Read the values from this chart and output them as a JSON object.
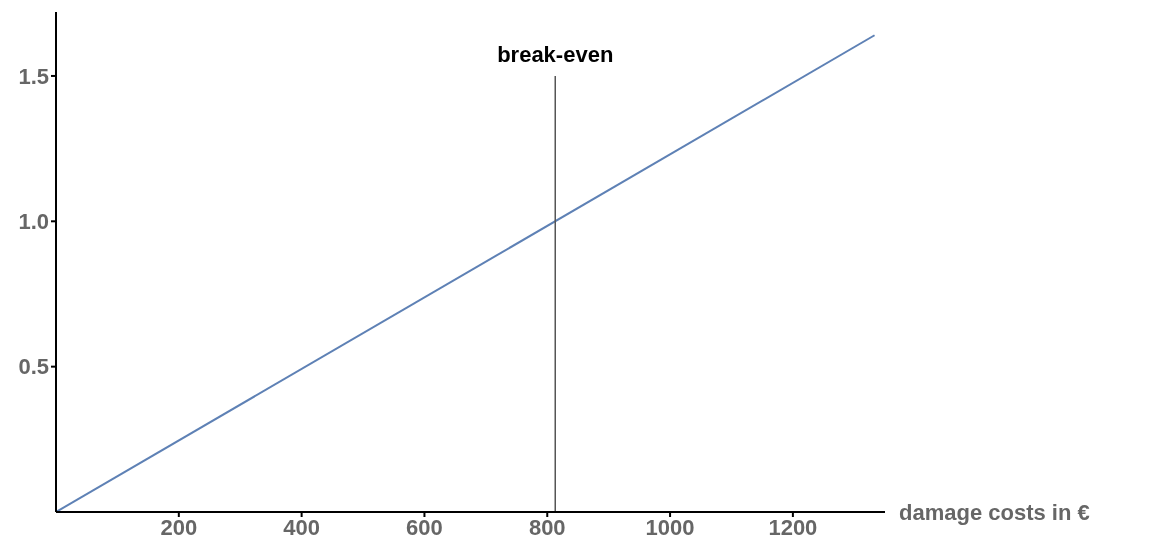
{
  "chart_data": {
    "type": "line",
    "xlabel": "damage costs in €",
    "x": [
      0,
      1333
    ],
    "series": [
      {
        "color": "#5e81b5",
        "values": [
          0,
          1.64
        ]
      }
    ],
    "xlim": [
      0,
      1350
    ],
    "xticks": [
      200,
      400,
      600,
      800,
      1000,
      1200
    ],
    "ylim": [
      0,
      1.72
    ],
    "yticks": [
      0.5,
      {
        "value": 1,
        "label": "1.0"
      },
      1.5
    ],
    "ref_lines": [
      {
        "axis": "x",
        "value": 813,
        "label": "break-even",
        "color": "#555555"
      }
    ],
    "grid": false,
    "legend": false,
    "marker": "none"
  }
}
